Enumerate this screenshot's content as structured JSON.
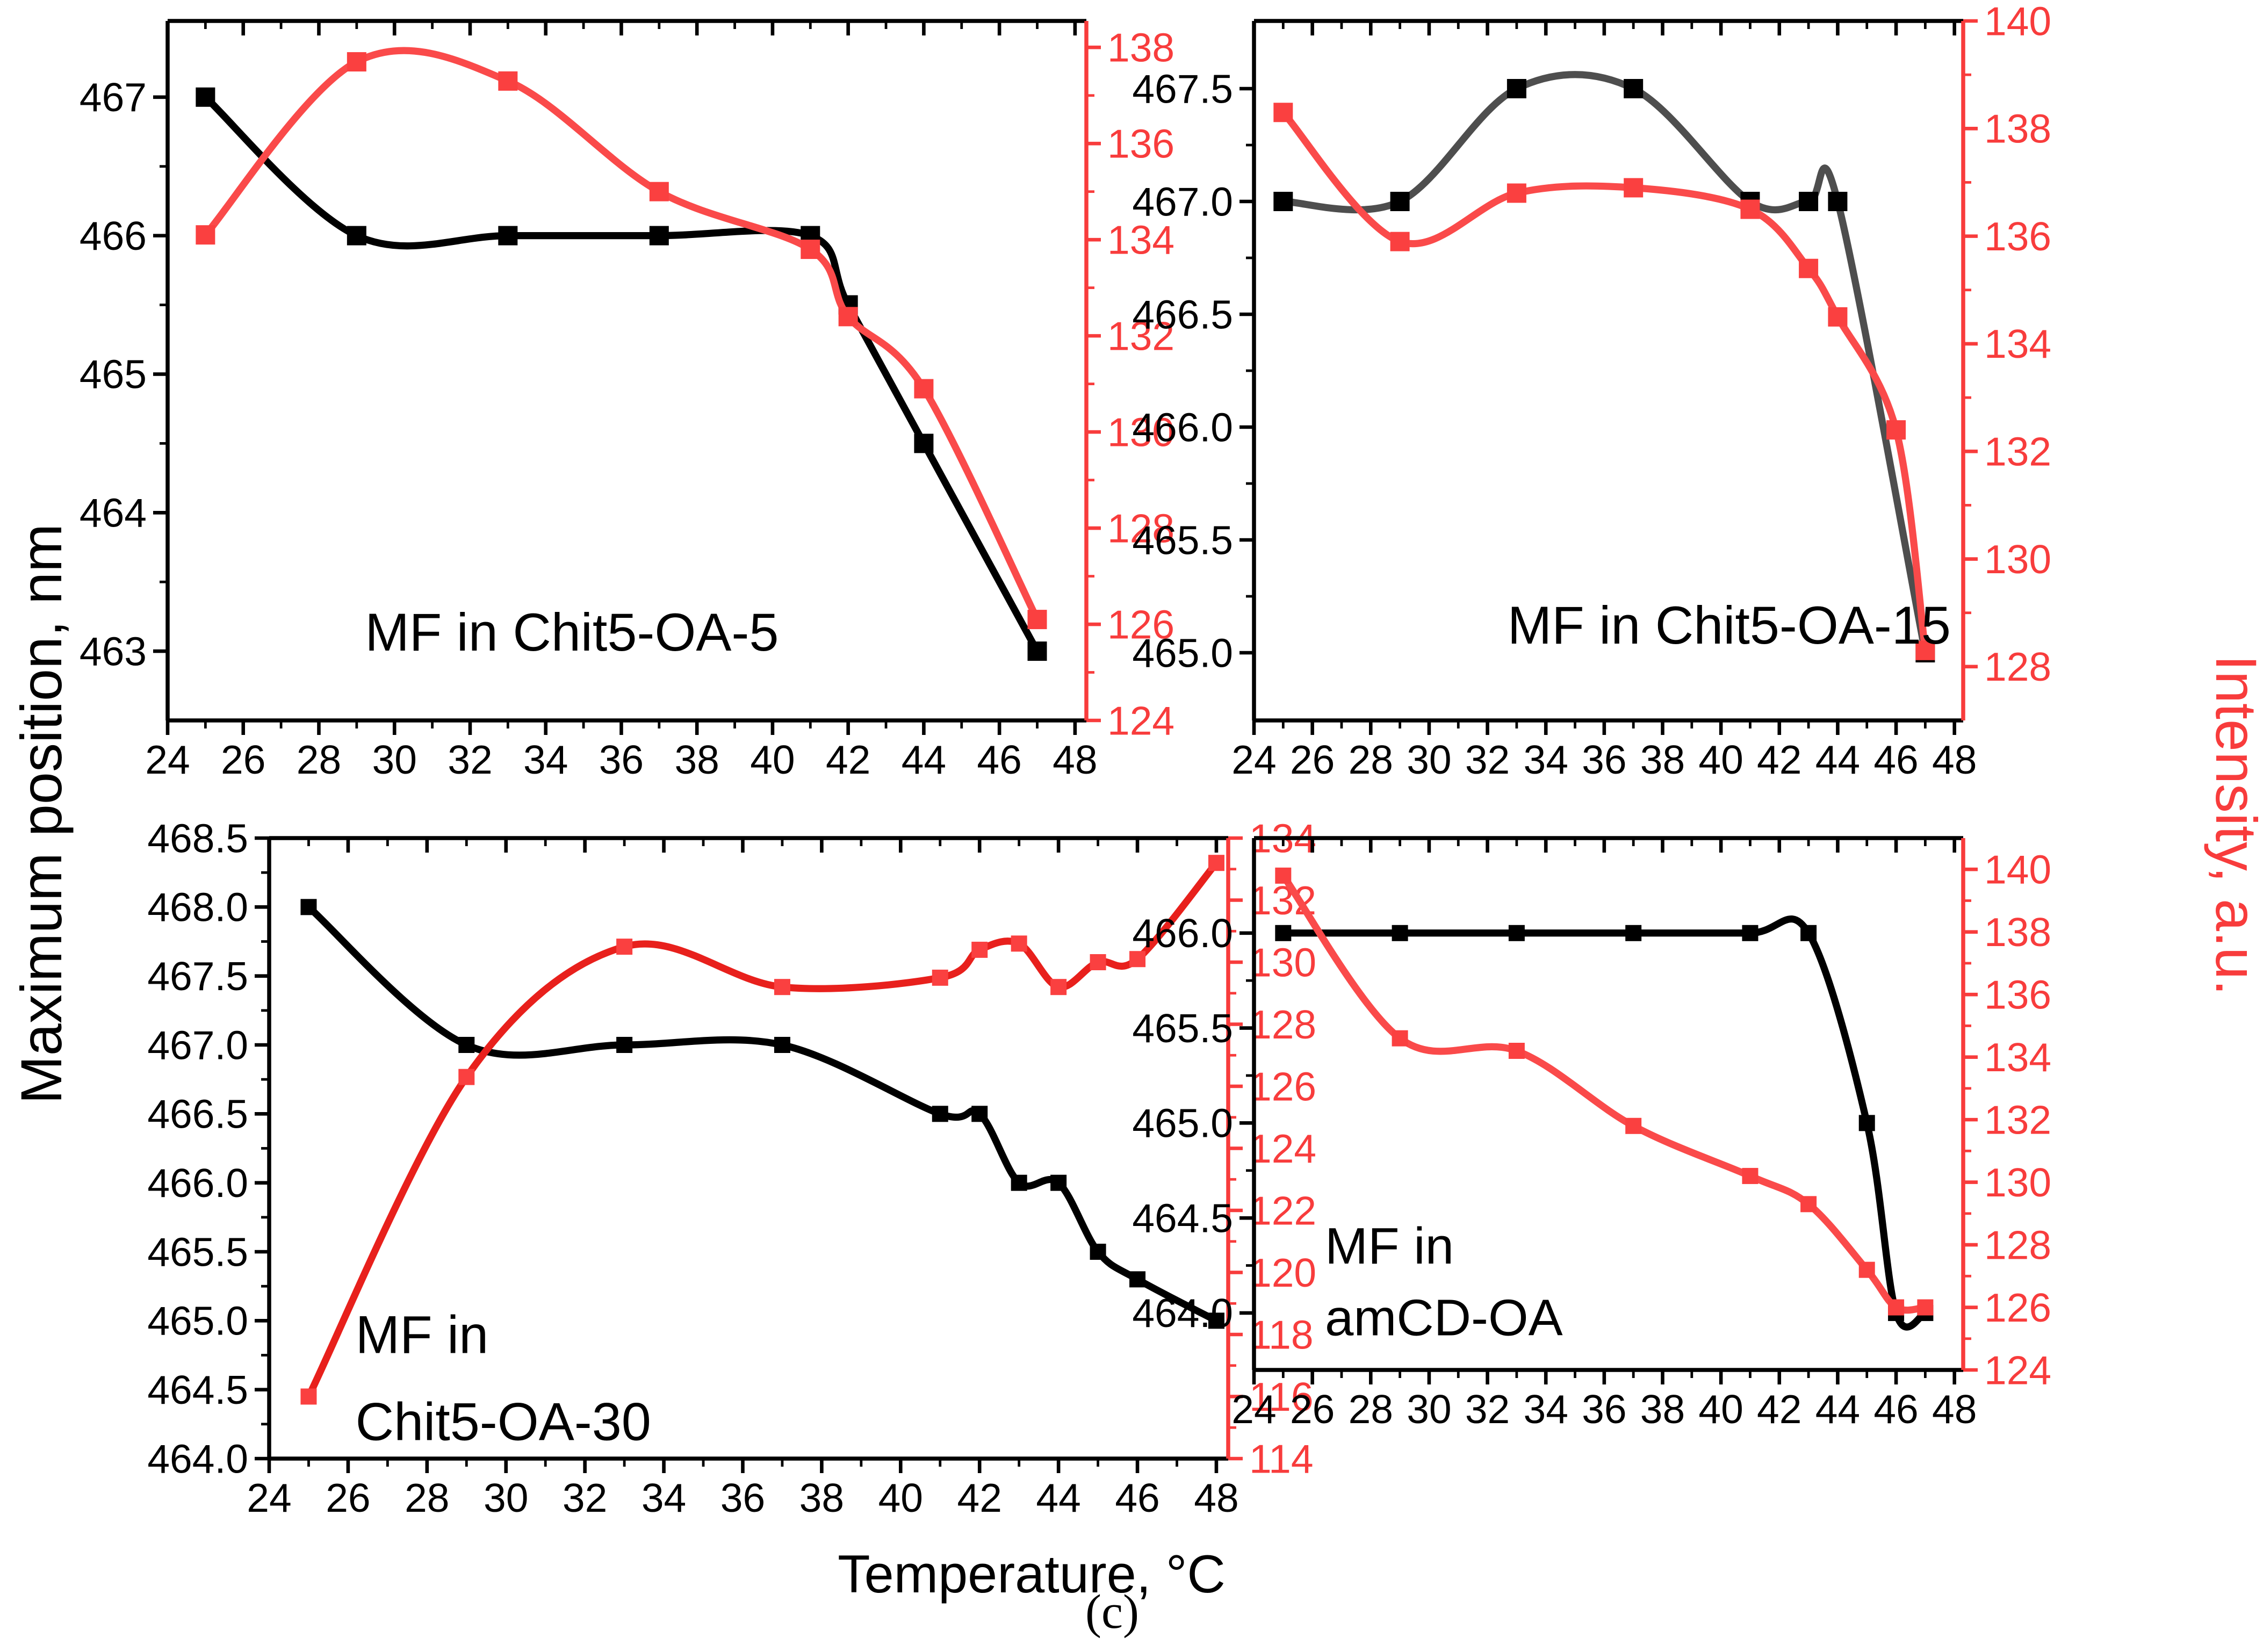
{
  "figure": {
    "caption": "(c)",
    "xlabel": "Temperature, °C",
    "ylabel_left": "Maximum position, nm",
    "ylabel_right": "Intensity, a.u.",
    "colors": {
      "black": "#000000",
      "gray_line": "#4E4E4E",
      "red_marker": "#FA4040",
      "red_line": "#FA4A4A",
      "red_line_bright": "#E8201C",
      "red_axis": "#F83C3C"
    }
  },
  "chart_data": [
    {
      "id": "chit5-oa-5",
      "type": "scatter",
      "annotation_lines": [
        "MF in Chit5-OA-5"
      ],
      "x_axis": {
        "range": [
          24,
          48.3
        ],
        "ticks": [
          24,
          26,
          28,
          30,
          32,
          34,
          36,
          38,
          40,
          42,
          44,
          46,
          48
        ],
        "tick_labels": [
          "24",
          "26",
          "28",
          "30",
          "32",
          "34",
          "36",
          "38",
          "40",
          "42",
          "44",
          "46",
          "48"
        ]
      },
      "y_left": {
        "range": [
          462.5,
          467.55
        ],
        "ticks": [
          463,
          464,
          465,
          466,
          467
        ],
        "tick_labels": [
          "463",
          "464",
          "465",
          "466",
          "467"
        ]
      },
      "y_right": {
        "range": [
          124,
          138.55
        ],
        "ticks": [
          124,
          126,
          128,
          130,
          132,
          134,
          136,
          138
        ],
        "tick_labels": [
          "124",
          "126",
          "128",
          "130",
          "132",
          "134",
          "136",
          "138"
        ]
      },
      "series": [
        {
          "name": "maximum-position",
          "axis": "left",
          "marker_color": "#000000",
          "line_color": "#000000",
          "x": [
            25,
            29,
            33,
            37,
            41,
            42,
            44,
            47
          ],
          "y": [
            467.0,
            466.0,
            466.0,
            466.0,
            466.0,
            465.5,
            464.5,
            463.0
          ]
        },
        {
          "name": "intensity",
          "axis": "right",
          "marker_color": "#FA4040",
          "line_color": "#FA4A4A",
          "x": [
            25,
            29,
            33,
            37,
            41,
            42,
            44,
            47
          ],
          "y": [
            134.1,
            137.7,
            137.3,
            135.0,
            133.8,
            132.4,
            130.9,
            126.1
          ]
        }
      ]
    },
    {
      "id": "chit5-oa-15",
      "type": "scatter",
      "annotation_lines": [
        "MF in Chit5-OA-15"
      ],
      "x_axis": {
        "range": [
          24,
          48.3
        ],
        "ticks": [
          24,
          26,
          28,
          30,
          32,
          34,
          36,
          38,
          40,
          42,
          44,
          46,
          48
        ],
        "tick_labels": [
          "24",
          "26",
          "28",
          "30",
          "32",
          "34",
          "36",
          "38",
          "40",
          "42",
          "44",
          "46",
          "48"
        ]
      },
      "y_left": {
        "range": [
          464.7,
          467.8
        ],
        "ticks": [
          465.0,
          465.5,
          466.0,
          466.5,
          467.0,
          467.5
        ],
        "tick_labels": [
          "465.0",
          "465.5",
          "466.0",
          "466.5",
          "467.0",
          "467.5"
        ]
      },
      "y_right": {
        "range": [
          127,
          140
        ],
        "ticks": [
          128,
          130,
          132,
          134,
          136,
          138,
          140
        ],
        "tick_labels": [
          "128",
          "130",
          "132",
          "134",
          "136",
          "138",
          "140"
        ]
      },
      "series": [
        {
          "name": "maximum-position",
          "axis": "left",
          "marker_color": "#000000",
          "line_color": "#4E4E4E",
          "x": [
            25,
            29,
            33,
            37,
            41,
            43,
            44,
            47
          ],
          "y": [
            467.0,
            467.0,
            467.5,
            467.5,
            467.0,
            467.0,
            467.0,
            465.0
          ]
        },
        {
          "name": "intensity",
          "axis": "right",
          "marker_color": "#FA4040",
          "line_color": "#FA4A4A",
          "x": [
            25,
            29,
            33,
            37,
            41,
            43,
            44,
            46,
            47
          ],
          "y": [
            138.3,
            135.9,
            136.8,
            136.9,
            136.5,
            135.4,
            134.5,
            132.4,
            128.3
          ]
        }
      ]
    },
    {
      "id": "chit5-oa-30",
      "type": "scatter",
      "annotation_lines": [
        "MF in",
        "Chit5-OA-30"
      ],
      "x_axis": {
        "range": [
          24,
          48.3
        ],
        "ticks": [
          24,
          26,
          28,
          30,
          32,
          34,
          36,
          38,
          40,
          42,
          44,
          46,
          48
        ],
        "tick_labels": [
          "24",
          "26",
          "28",
          "30",
          "32",
          "34",
          "36",
          "38",
          "40",
          "42",
          "44",
          "46",
          "48"
        ]
      },
      "y_left": {
        "range": [
          464.0,
          468.5
        ],
        "ticks": [
          464.0,
          464.5,
          465.0,
          465.5,
          466.0,
          466.5,
          467.0,
          467.5,
          468.0,
          468.5
        ],
        "tick_labels": [
          "464.0",
          "464.5",
          "465.0",
          "465.5",
          "466.0",
          "466.5",
          "467.0",
          "467.5",
          "468.0",
          "468.5"
        ]
      },
      "y_right": {
        "range": [
          114,
          134
        ],
        "ticks": [
          114,
          116,
          118,
          120,
          122,
          124,
          126,
          128,
          130,
          132,
          134
        ],
        "tick_labels": [
          "114",
          "116",
          "118",
          "120",
          "122",
          "124",
          "126",
          "128",
          "130",
          "132",
          "134"
        ]
      },
      "series": [
        {
          "name": "maximum-position",
          "axis": "left",
          "marker_color": "#000000",
          "line_color": "#000000",
          "x": [
            25,
            29,
            33,
            37,
            41,
            42,
            43,
            44,
            45,
            46,
            48
          ],
          "y": [
            468.0,
            467.0,
            467.0,
            467.0,
            466.5,
            466.5,
            466.0,
            466.0,
            465.5,
            465.3,
            465.0
          ]
        },
        {
          "name": "intensity",
          "axis": "right",
          "marker_color": "#FA4040",
          "line_color": "#E8201C",
          "x": [
            25,
            29,
            33,
            37,
            41,
            42,
            43,
            44,
            45,
            46,
            48
          ],
          "y": [
            116.0,
            126.3,
            130.5,
            129.2,
            129.5,
            130.4,
            130.6,
            129.2,
            130.0,
            130.1,
            133.2
          ]
        }
      ]
    },
    {
      "id": "amcd-oa",
      "type": "scatter",
      "annotation_lines": [
        "MF in",
        "amCD-OA"
      ],
      "x_axis": {
        "range": [
          24,
          48.3
        ],
        "ticks": [
          24,
          26,
          28,
          30,
          32,
          34,
          36,
          38,
          40,
          42,
          44,
          46,
          48
        ],
        "tick_labels": [
          "24",
          "26",
          "28",
          "30",
          "32",
          "34",
          "36",
          "38",
          "40",
          "42",
          "44",
          "46",
          "48"
        ]
      },
      "y_left": {
        "range": [
          463.7,
          466.5
        ],
        "ticks": [
          464.0,
          464.5,
          465.0,
          465.5,
          466.0
        ],
        "tick_labels": [
          "464.0",
          "464.5",
          "465.0",
          "465.5",
          "466.0"
        ]
      },
      "y_right": {
        "range": [
          124,
          141
        ],
        "ticks": [
          124,
          126,
          128,
          130,
          132,
          134,
          136,
          138,
          140
        ],
        "tick_labels": [
          "124",
          "126",
          "128",
          "130",
          "132",
          "134",
          "136",
          "138",
          "140"
        ]
      },
      "series": [
        {
          "name": "maximum-position",
          "axis": "left",
          "marker_color": "#000000",
          "line_color": "#000000",
          "x": [
            25,
            29,
            33,
            37,
            41,
            43,
            45,
            46,
            47
          ],
          "y": [
            466.0,
            466.0,
            466.0,
            466.0,
            466.0,
            466.0,
            465.0,
            464.0,
            464.0
          ]
        },
        {
          "name": "intensity",
          "axis": "right",
          "marker_color": "#FA4040",
          "line_color": "#FA4A4A",
          "x": [
            25,
            29,
            33,
            37,
            41,
            43,
            45,
            46,
            47
          ],
          "y": [
            139.8,
            134.6,
            134.2,
            131.8,
            130.2,
            129.3,
            127.2,
            126.0,
            126.0
          ]
        }
      ]
    }
  ]
}
